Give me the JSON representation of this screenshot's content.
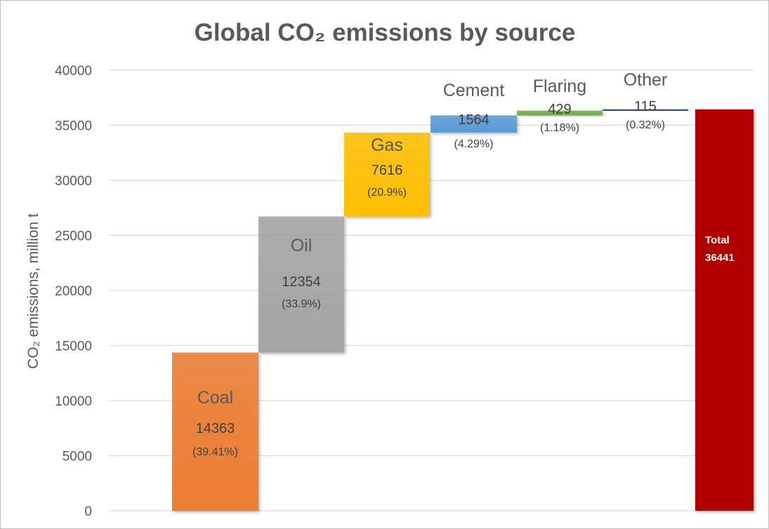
{
  "chart_data": {
    "type": "waterfall",
    "title": "Global CO₂ emissions by source",
    "ylabel": "CO₂ emissions, million t",
    "xlabel": "",
    "ylim": [
      0,
      40000
    ],
    "yticks": [
      "0",
      "5000",
      "10000",
      "15000",
      "20000",
      "25000",
      "30000",
      "35000",
      "40000"
    ],
    "grid": true,
    "legend": "none",
    "categories": [
      "Coal",
      "Oil",
      "Gas",
      "Cement",
      "Flaring",
      "Other"
    ],
    "values": [
      14363,
      12354,
      7616,
      1564,
      429,
      115
    ],
    "value_labels": [
      "14363",
      "12354",
      "7616",
      "1564",
      "429",
      "115"
    ],
    "percent_labels": [
      "(39.41%)",
      "(33.9%)",
      "(20.9%)",
      "(4.29%)",
      "(1.18%)",
      "(0.32%)"
    ],
    "colors": [
      "#ed7d31",
      "#a5a5a5",
      "#ffc000",
      "#5b9bd5",
      "#70ad47",
      "#264478"
    ],
    "total": {
      "label": "Total",
      "value": 36441,
      "value_label": "36441",
      "color": "#b00000"
    }
  }
}
